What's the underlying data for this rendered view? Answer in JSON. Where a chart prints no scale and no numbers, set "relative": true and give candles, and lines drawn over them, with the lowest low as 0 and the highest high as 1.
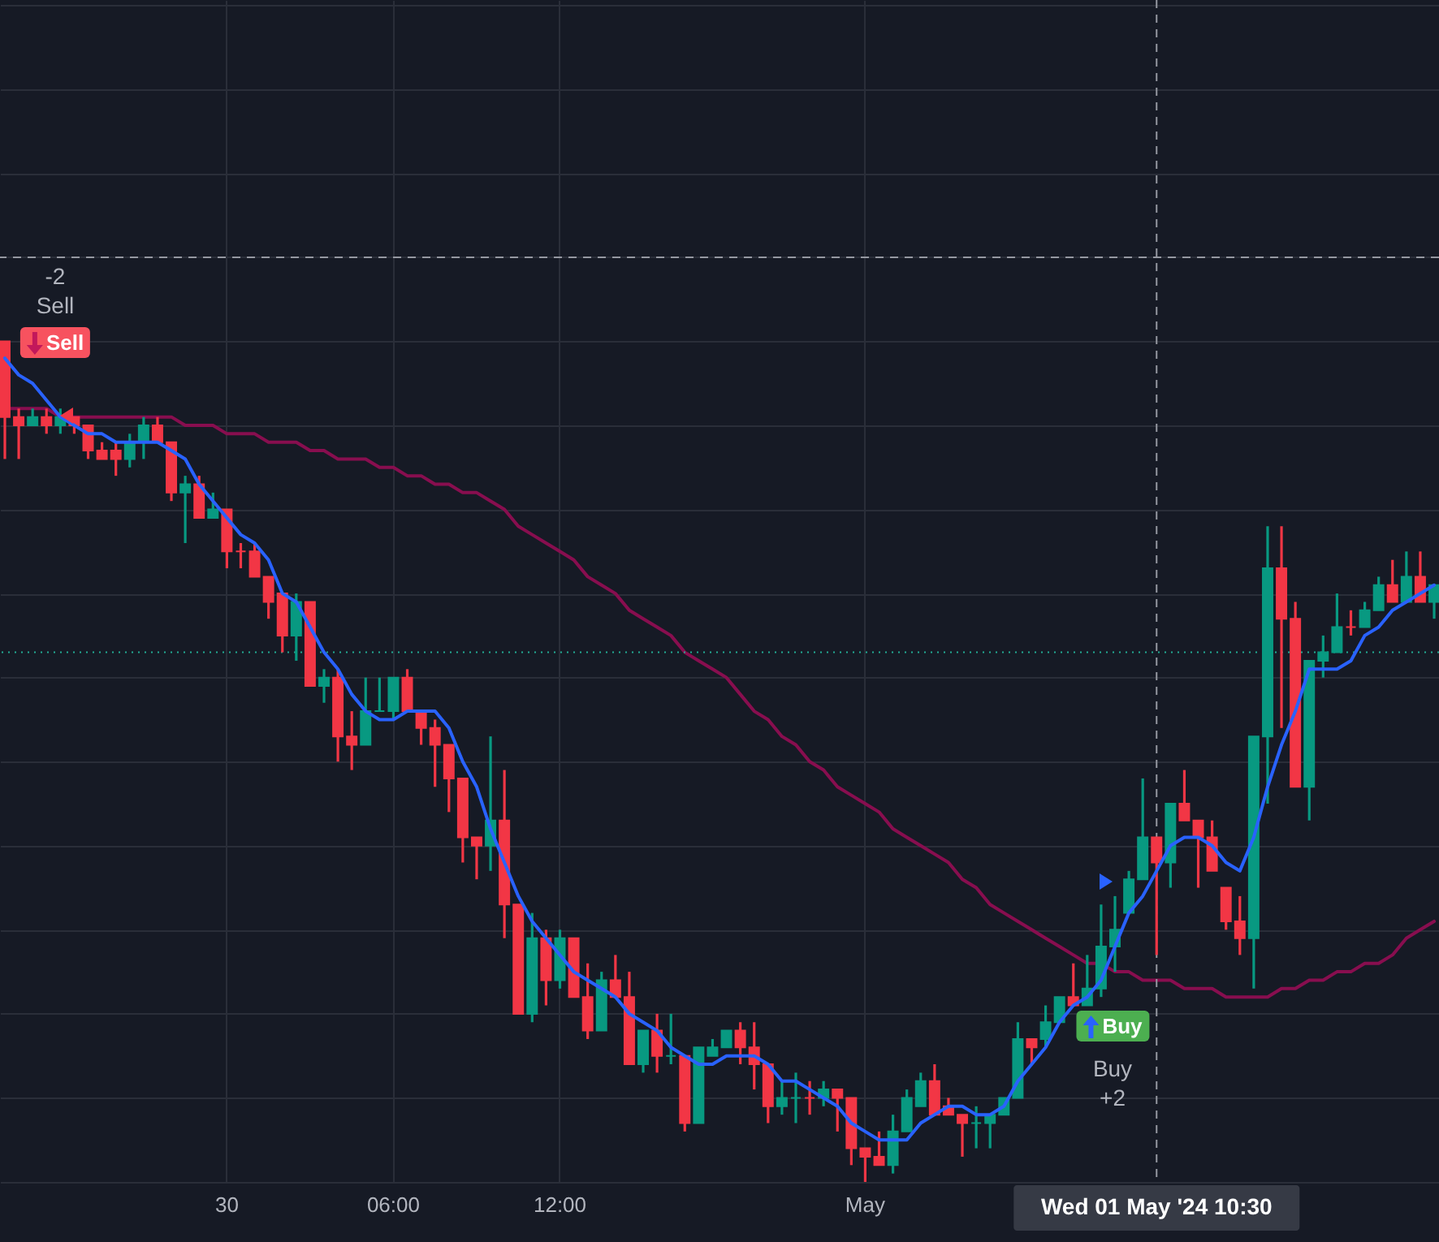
{
  "chart_data": {
    "type": "candlestick",
    "relative": true,
    "grid": true,
    "categories": [
      null,
      null,
      null,
      null,
      null,
      null,
      null,
      null,
      null,
      null,
      null,
      null,
      null,
      null,
      null,
      null,
      "30",
      null,
      null,
      null,
      null,
      null,
      null,
      null,
      null,
      null,
      null,
      null,
      "06:00",
      null,
      null,
      null,
      null,
      null,
      null,
      null,
      null,
      null,
      null,
      null,
      "12:00",
      null,
      null,
      null,
      null,
      null,
      null,
      null,
      null,
      null,
      null,
      null,
      null,
      null,
      null,
      null,
      null,
      null,
      null,
      null,
      null,
      null,
      "May",
      null,
      null,
      null,
      null,
      null,
      null,
      null,
      null,
      null,
      null,
      null,
      null,
      null,
      null,
      null,
      null,
      null,
      null,
      null,
      null,
      "Wed 01 May '24  10:30",
      null,
      null,
      null,
      null,
      null,
      null,
      null,
      null,
      null,
      null,
      null,
      null,
      null,
      null,
      null,
      null,
      null,
      null,
      null,
      null
    ],
    "ohlc": [
      [
        1.0,
        1.0,
        0.86,
        0.91
      ],
      [
        0.91,
        0.92,
        0.86,
        0.9
      ],
      [
        0.9,
        0.92,
        0.9,
        0.91
      ],
      [
        0.91,
        0.92,
        0.89,
        0.9
      ],
      [
        0.9,
        0.92,
        0.89,
        0.91
      ],
      [
        0.91,
        0.91,
        0.89,
        0.9
      ],
      [
        0.9,
        0.9,
        0.86,
        0.87
      ],
      [
        0.87,
        0.88,
        0.86,
        0.86
      ],
      [
        0.87,
        0.88,
        0.84,
        0.86
      ],
      [
        0.86,
        0.89,
        0.85,
        0.88
      ],
      [
        0.88,
        0.91,
        0.86,
        0.9
      ],
      [
        0.9,
        0.91,
        0.88,
        0.88
      ],
      [
        0.88,
        0.88,
        0.81,
        0.82
      ],
      [
        0.82,
        0.84,
        0.76,
        0.83
      ],
      [
        0.83,
        0.84,
        0.79,
        0.79
      ],
      [
        0.79,
        0.82,
        0.79,
        0.8
      ],
      [
        0.8,
        0.8,
        0.73,
        0.75
      ],
      [
        0.75,
        0.76,
        0.73,
        0.75
      ],
      [
        0.75,
        0.76,
        0.72,
        0.72
      ],
      [
        0.72,
        0.72,
        0.67,
        0.69
      ],
      [
        0.7,
        0.7,
        0.63,
        0.65
      ],
      [
        0.65,
        0.7,
        0.62,
        0.69
      ],
      [
        0.69,
        0.69,
        0.59,
        0.59
      ],
      [
        0.59,
        0.61,
        0.57,
        0.6
      ],
      [
        0.6,
        0.61,
        0.5,
        0.53
      ],
      [
        0.53,
        0.56,
        0.49,
        0.52
      ],
      [
        0.52,
        0.6,
        0.52,
        0.56
      ],
      [
        0.56,
        0.6,
        0.56,
        0.56
      ],
      [
        0.56,
        0.6,
        0.55,
        0.6
      ],
      [
        0.6,
        0.61,
        0.56,
        0.56
      ],
      [
        0.56,
        0.56,
        0.52,
        0.54
      ],
      [
        0.54,
        0.55,
        0.47,
        0.52
      ],
      [
        0.52,
        0.52,
        0.44,
        0.48
      ],
      [
        0.48,
        0.48,
        0.38,
        0.41
      ],
      [
        0.41,
        0.41,
        0.36,
        0.4
      ],
      [
        0.4,
        0.53,
        0.37,
        0.43
      ],
      [
        0.43,
        0.49,
        0.29,
        0.33
      ],
      [
        0.33,
        0.33,
        0.2,
        0.2
      ],
      [
        0.2,
        0.32,
        0.19,
        0.29
      ],
      [
        0.29,
        0.3,
        0.21,
        0.24
      ],
      [
        0.24,
        0.3,
        0.23,
        0.29
      ],
      [
        0.29,
        0.29,
        0.22,
        0.22
      ],
      [
        0.22,
        0.26,
        0.17,
        0.18
      ],
      [
        0.18,
        0.25,
        0.18,
        0.24
      ],
      [
        0.24,
        0.27,
        0.22,
        0.22
      ],
      [
        0.22,
        0.25,
        0.14,
        0.14
      ],
      [
        0.14,
        0.18,
        0.13,
        0.18
      ],
      [
        0.18,
        0.2,
        0.13,
        0.15
      ],
      [
        0.15,
        0.2,
        0.14,
        0.15
      ],
      [
        0.15,
        0.15,
        0.06,
        0.07
      ],
      [
        0.07,
        0.16,
        0.07,
        0.16
      ],
      [
        0.15,
        0.17,
        0.15,
        0.16
      ],
      [
        0.16,
        0.18,
        0.16,
        0.18
      ],
      [
        0.18,
        0.19,
        0.14,
        0.16
      ],
      [
        0.16,
        0.19,
        0.11,
        0.14
      ],
      [
        0.14,
        0.14,
        0.07,
        0.09
      ],
      [
        0.09,
        0.12,
        0.08,
        0.1
      ],
      [
        0.1,
        0.13,
        0.07,
        0.1
      ],
      [
        0.1,
        0.12,
        0.08,
        0.1
      ],
      [
        0.1,
        0.12,
        0.09,
        0.11
      ],
      [
        0.11,
        0.11,
        0.06,
        0.1
      ],
      [
        0.1,
        0.1,
        0.02,
        0.04
      ],
      [
        0.04,
        0.04,
        0.0,
        0.03
      ],
      [
        0.03,
        0.06,
        0.02,
        0.02
      ],
      [
        0.02,
        0.08,
        0.01,
        0.06
      ],
      [
        0.06,
        0.11,
        0.06,
        0.1
      ],
      [
        0.09,
        0.13,
        0.09,
        0.12
      ],
      [
        0.12,
        0.14,
        0.08,
        0.08
      ],
      [
        0.09,
        0.1,
        0.08,
        0.08
      ],
      [
        0.08,
        0.08,
        0.03,
        0.07
      ],
      [
        0.07,
        0.09,
        0.04,
        0.07
      ],
      [
        0.07,
        0.08,
        0.04,
        0.08
      ],
      [
        0.08,
        0.1,
        0.08,
        0.1
      ],
      [
        0.1,
        0.19,
        0.1,
        0.17
      ],
      [
        0.17,
        0.17,
        0.14,
        0.16
      ],
      [
        0.17,
        0.21,
        0.16,
        0.19
      ],
      [
        0.19,
        0.22,
        0.19,
        0.22
      ],
      [
        0.22,
        0.26,
        0.21,
        0.21
      ],
      [
        0.21,
        0.27,
        0.21,
        0.23
      ],
      [
        0.23,
        0.33,
        0.22,
        0.28
      ],
      [
        0.28,
        0.34,
        0.25,
        0.3
      ],
      [
        0.32,
        0.37,
        0.32,
        0.36
      ],
      [
        0.36,
        0.48,
        0.36,
        0.41
      ],
      [
        0.41,
        0.41,
        0.27,
        0.38
      ],
      [
        0.38,
        0.45,
        0.35,
        0.45
      ],
      [
        0.45,
        0.49,
        0.43,
        0.43
      ],
      [
        0.43,
        0.43,
        0.35,
        0.41
      ],
      [
        0.41,
        0.43,
        0.37,
        0.37
      ],
      [
        0.35,
        0.35,
        0.3,
        0.31
      ],
      [
        0.31,
        0.34,
        0.27,
        0.29
      ],
      [
        0.29,
        0.53,
        0.23,
        0.53
      ],
      [
        0.53,
        0.78,
        0.45,
        0.73
      ],
      [
        0.73,
        0.78,
        0.54,
        0.67
      ],
      [
        0.67,
        0.69,
        0.47,
        0.47
      ],
      [
        0.47,
        0.62,
        0.43,
        0.62
      ],
      [
        0.62,
        0.65,
        0.6,
        0.63
      ],
      [
        0.63,
        0.7,
        0.63,
        0.66
      ],
      [
        0.66,
        0.68,
        0.65,
        0.66
      ],
      [
        0.66,
        0.69,
        0.66,
        0.68
      ],
      [
        0.68,
        0.72,
        0.68,
        0.71
      ],
      [
        0.71,
        0.74,
        0.69,
        0.69
      ],
      [
        0.69,
        0.75,
        0.69,
        0.72
      ],
      [
        0.72,
        0.75,
        0.69,
        0.69
      ],
      [
        0.69,
        0.71,
        0.67,
        0.71
      ]
    ],
    "colors": [
      "#f23645",
      "#f23645",
      "#089981",
      "#f23645",
      "#089981",
      "#f23645",
      "#f23645",
      "#f23645",
      "#f23645",
      "#089981",
      "#089981",
      "#f23645",
      "#f23645",
      "#089981",
      "#f23645",
      "#089981",
      "#f23645",
      "#f23645",
      "#f23645",
      "#f23645",
      "#f23645",
      "#089981",
      "#f23645",
      "#089981",
      "#f23645",
      "#f23645",
      "#089981",
      "#089981",
      "#089981",
      "#f23645",
      "#f23645",
      "#f23645",
      "#f23645",
      "#f23645",
      "#f23645",
      "#089981",
      "#f23645",
      "#f23645",
      "#089981",
      "#f23645",
      "#089981",
      "#f23645",
      "#f23645",
      "#089981",
      "#f23645",
      "#f23645",
      "#089981",
      "#f23645",
      "#089981",
      "#f23645",
      "#089981",
      "#089981",
      "#089981",
      "#f23645",
      "#f23645",
      "#f23645",
      "#089981",
      "#089981",
      "#f23645",
      "#089981",
      "#f23645",
      "#f23645",
      "#f23645",
      "#f23645",
      "#089981",
      "#089981",
      "#089981",
      "#f23645",
      "#f23645",
      "#f23645",
      "#089981",
      "#089981",
      "#089981",
      "#089981",
      "#f23645",
      "#089981",
      "#089981",
      "#f23645",
      "#089981",
      "#089981",
      "#089981",
      "#089981",
      "#089981",
      "#f23645",
      "#089981",
      "#f23645",
      "#f23645",
      "#f23645",
      "#f23645",
      "#f23645",
      "#089981",
      "#089981",
      "#f23645",
      "#f23645",
      "#089981",
      "#089981",
      "#089981",
      "#f23645",
      "#089981",
      "#089981",
      "#f23645",
      "#089981",
      "#f23645",
      "#089981"
    ],
    "series": [
      {
        "type": "line",
        "color": "#2962ff",
        "values": [
          0.98,
          0.96,
          0.95,
          0.93,
          0.91,
          0.9,
          0.89,
          0.89,
          0.88,
          0.88,
          0.88,
          0.88,
          0.87,
          0.86,
          0.83,
          0.81,
          0.79,
          0.77,
          0.76,
          0.74,
          0.7,
          0.69,
          0.66,
          0.63,
          0.61,
          0.58,
          0.56,
          0.55,
          0.55,
          0.56,
          0.56,
          0.56,
          0.54,
          0.5,
          0.47,
          0.42,
          0.38,
          0.34,
          0.31,
          0.29,
          0.27,
          0.25,
          0.24,
          0.23,
          0.22,
          0.2,
          0.19,
          0.18,
          0.16,
          0.15,
          0.14,
          0.14,
          0.15,
          0.15,
          0.15,
          0.14,
          0.12,
          0.12,
          0.11,
          0.1,
          0.09,
          0.07,
          0.06,
          0.05,
          0.05,
          0.05,
          0.07,
          0.08,
          0.09,
          0.09,
          0.08,
          0.08,
          0.09,
          0.12,
          0.14,
          0.16,
          0.19,
          0.21,
          0.22,
          0.24,
          0.28,
          0.32,
          0.34,
          0.37,
          0.4,
          0.41,
          0.41,
          0.4,
          0.38,
          0.37,
          0.41,
          0.47,
          0.52,
          0.56,
          0.61,
          0.61,
          0.61,
          0.62,
          0.65,
          0.66,
          0.68,
          0.69,
          0.7,
          0.71
        ]
      },
      {
        "type": "line",
        "color": "#880e4f",
        "values": [
          0.92,
          0.92,
          0.92,
          0.92,
          0.91,
          0.91,
          0.91,
          0.91,
          0.91,
          0.91,
          0.91,
          0.91,
          0.91,
          0.9,
          0.9,
          0.9,
          0.89,
          0.89,
          0.89,
          0.88,
          0.88,
          0.88,
          0.87,
          0.87,
          0.86,
          0.86,
          0.86,
          0.85,
          0.85,
          0.84,
          0.84,
          0.83,
          0.83,
          0.82,
          0.82,
          0.81,
          0.8,
          0.78,
          0.77,
          0.76,
          0.75,
          0.74,
          0.72,
          0.71,
          0.7,
          0.68,
          0.67,
          0.66,
          0.65,
          0.63,
          0.62,
          0.61,
          0.6,
          0.58,
          0.56,
          0.55,
          0.53,
          0.52,
          0.5,
          0.49,
          0.47,
          0.46,
          0.45,
          0.44,
          0.42,
          0.41,
          0.4,
          0.39,
          0.38,
          0.36,
          0.35,
          0.33,
          0.32,
          0.31,
          0.3,
          0.29,
          0.28,
          0.27,
          0.26,
          0.26,
          0.25,
          0.25,
          0.24,
          0.24,
          0.24,
          0.23,
          0.23,
          0.23,
          0.22,
          0.22,
          0.22,
          0.22,
          0.23,
          0.23,
          0.24,
          0.24,
          0.25,
          0.25,
          0.26,
          0.26,
          0.27,
          0.29,
          0.3,
          0.31
        ]
      }
    ],
    "ref_lines": [
      {
        "axis": "y",
        "value": 1.1,
        "line_style": "dashed",
        "color": "#9598a1"
      },
      {
        "axis": "y",
        "value": 0.63,
        "line_style": "dotted",
        "color": "#22ab94"
      },
      {
        "axis": "x",
        "value": "Wed 01 May '24  10:30",
        "line_style": "dashed",
        "color": "#9598a1"
      }
    ],
    "annotations": [
      "-2",
      "Sell",
      "Sell",
      "Buy",
      "Buy",
      "+2"
    ]
  }
}
